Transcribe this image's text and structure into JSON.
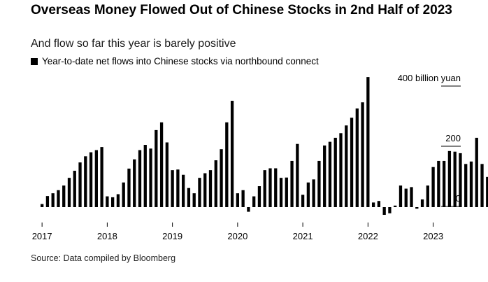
{
  "header": {
    "title": "Overseas Money Flowed Out of Chinese Stocks in 2nd Half of 2023",
    "subtitle": "And flow so far this year is barely positive"
  },
  "legend": {
    "label": "Year-to-date net flows into Chinese stocks via northbound connect"
  },
  "source": "Source: Data compiled by Bloomberg",
  "colors": {
    "bars": "#000000",
    "axis": "#000000"
  },
  "chart_data": {
    "type": "bar",
    "title": "Overseas Money Flowed Out of Chinese Stocks in 2nd Half of 2023",
    "subtitle": "And flow so far this year is barely positive",
    "ylabel": "",
    "y_unit_label": "400 billion yuan",
    "ylim": [
      -20,
      400
    ],
    "y_ticks": [
      {
        "value": 0,
        "label": "0"
      },
      {
        "value": 200,
        "label": "200"
      },
      {
        "value": 400,
        "label": "400 billion yuan"
      }
    ],
    "x_ticks": [
      "2017",
      "2018",
      "2019",
      "2020",
      "2021",
      "2022",
      "2023",
      "2024"
    ],
    "frequency": "monthly",
    "start": "2017-01",
    "grid": false,
    "legend_position": "top-left",
    "series": [
      {
        "name": "Year-to-date net flows into Chinese stocks via northbound connect",
        "values": [
          10,
          36,
          45,
          55,
          70,
          95,
          118,
          145,
          165,
          178,
          185,
          195,
          35,
          32,
          42,
          80,
          125,
          155,
          185,
          202,
          190,
          250,
          275,
          210,
          120,
          122,
          105,
          62,
          45,
          95,
          110,
          120,
          152,
          188,
          275,
          345,
          45,
          55,
          -15,
          35,
          68,
          120,
          126,
          126,
          95,
          96,
          150,
          205,
          40,
          80,
          90,
          150,
          200,
          212,
          225,
          240,
          265,
          290,
          320,
          340,
          422,
          15,
          20,
          -25,
          -20,
          5,
          70,
          60,
          65,
          -5,
          25,
          70,
          130,
          150,
          150,
          182,
          180,
          175,
          140,
          148,
          225,
          140,
          98,
          58,
          55,
          35,
          -12,
          3
        ]
      }
    ]
  }
}
